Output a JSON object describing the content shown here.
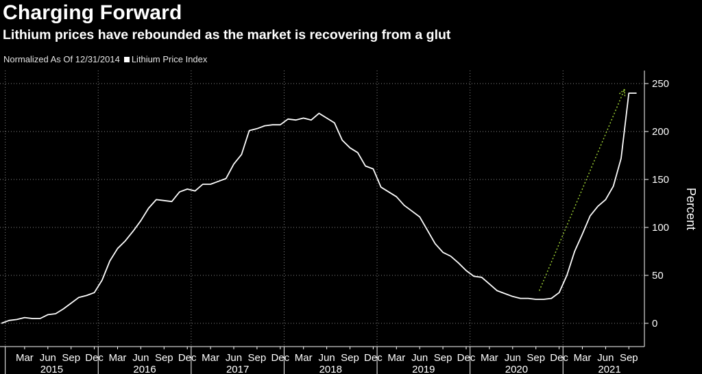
{
  "header": {
    "title": "Charging Forward",
    "subtitle": "Lithium prices have rebounded as the market is recovering from a glut",
    "note": "Normalized As Of 12/31/2014",
    "legend_label": "Lithium Price Index"
  },
  "colors": {
    "background": "#000000",
    "line": "#ffffff",
    "grid": "#8a8a8a",
    "arrow": "#9acd32"
  },
  "chart_data": {
    "type": "line",
    "title": "Charging Forward",
    "subtitle": "Lithium prices have rebounded as the market is recovering from a glut",
    "xlabel": "",
    "ylabel": "Percent",
    "ylim": [
      -25,
      260
    ],
    "y_ticks": [
      0,
      50,
      100,
      150,
      200,
      250
    ],
    "grid": true,
    "legend": "top-left",
    "month_ticks": [
      "Mar",
      "Jun",
      "Sep",
      "Dec",
      "Mar",
      "Jun",
      "Sep",
      "Dec",
      "Mar",
      "Jun",
      "Sep",
      "Dec",
      "Mar",
      "Jun",
      "Sep",
      "Dec",
      "Mar",
      "Jun",
      "Sep",
      "Dec",
      "Mar",
      "Jun",
      "Sep",
      "Dec",
      "Mar",
      "Jun",
      "Sep"
    ],
    "year_labels": [
      "2015",
      "2016",
      "2017",
      "2018",
      "2019",
      "2020",
      "2021"
    ],
    "series": [
      {
        "name": "Lithium Price Index",
        "x": [
          "2014-12",
          "2015-01",
          "2015-02",
          "2015-03",
          "2015-04",
          "2015-05",
          "2015-06",
          "2015-07",
          "2015-08",
          "2015-09",
          "2015-10",
          "2015-11",
          "2015-12",
          "2016-01",
          "2016-02",
          "2016-03",
          "2016-04",
          "2016-05",
          "2016-06",
          "2016-07",
          "2016-08",
          "2016-09",
          "2016-10",
          "2016-11",
          "2016-12",
          "2017-01",
          "2017-02",
          "2017-03",
          "2017-04",
          "2017-05",
          "2017-06",
          "2017-07",
          "2017-08",
          "2017-09",
          "2017-10",
          "2017-11",
          "2017-12",
          "2018-01",
          "2018-02",
          "2018-03",
          "2018-04",
          "2018-05",
          "2018-06",
          "2018-07",
          "2018-08",
          "2018-09",
          "2018-10",
          "2018-11",
          "2018-12",
          "2019-01",
          "2019-02",
          "2019-03",
          "2019-04",
          "2019-05",
          "2019-06",
          "2019-07",
          "2019-08",
          "2019-09",
          "2019-10",
          "2019-11",
          "2019-12",
          "2020-01",
          "2020-02",
          "2020-03",
          "2020-04",
          "2020-05",
          "2020-06",
          "2020-07",
          "2020-08",
          "2020-09",
          "2020-10",
          "2020-11",
          "2020-12",
          "2021-01",
          "2021-02",
          "2021-03",
          "2021-04",
          "2021-05",
          "2021-06",
          "2021-07",
          "2021-08",
          "2021-09",
          "2021-10"
        ],
        "values": [
          0,
          3,
          4,
          6,
          5,
          5,
          9,
          10,
          15,
          21,
          27,
          29,
          32,
          45,
          65,
          78,
          86,
          96,
          107,
          120,
          129,
          128,
          127,
          137,
          140,
          138,
          145,
          145,
          148,
          151,
          166,
          176,
          201,
          203,
          206,
          207,
          207,
          213,
          212,
          214,
          212,
          219,
          214,
          209,
          191,
          183,
          178,
          164,
          161,
          142,
          137,
          132,
          123,
          117,
          111,
          97,
          83,
          74,
          70,
          63,
          55,
          49,
          48,
          41,
          34,
          31,
          28,
          26,
          26,
          25,
          25,
          26,
          32,
          50,
          75,
          93,
          112,
          122,
          129,
          143,
          172,
          240,
          240
        ]
      }
    ],
    "annotations": [
      {
        "type": "arrow",
        "from": [
          "2020-09",
          34
        ],
        "to": [
          "2021-08",
          244
        ]
      }
    ]
  }
}
